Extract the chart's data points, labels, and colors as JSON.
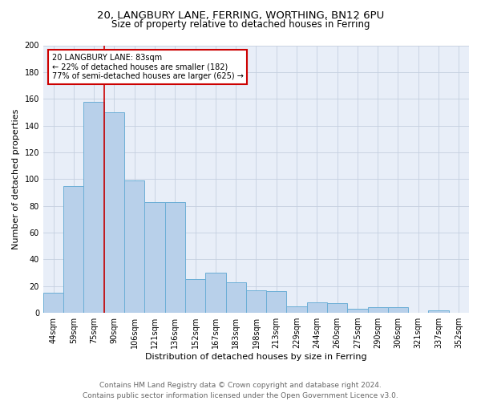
{
  "title1": "20, LANGBURY LANE, FERRING, WORTHING, BN12 6PU",
  "title2": "Size of property relative to detached houses in Ferring",
  "xlabel": "Distribution of detached houses by size in Ferring",
  "ylabel": "Number of detached properties",
  "categories": [
    "44sqm",
    "59sqm",
    "75sqm",
    "90sqm",
    "106sqm",
    "121sqm",
    "136sqm",
    "152sqm",
    "167sqm",
    "183sqm",
    "198sqm",
    "213sqm",
    "229sqm",
    "244sqm",
    "260sqm",
    "275sqm",
    "290sqm",
    "306sqm",
    "321sqm",
    "337sqm",
    "352sqm"
  ],
  "values": [
    15,
    95,
    158,
    150,
    99,
    83,
    83,
    25,
    30,
    23,
    17,
    16,
    5,
    8,
    7,
    3,
    4,
    4,
    0,
    2,
    0
  ],
  "bar_color": "#b8d0ea",
  "bar_edge_color": "#6baed6",
  "vline_color": "#cc0000",
  "annotation_text": "20 LANGBURY LANE: 83sqm\n← 22% of detached houses are smaller (182)\n77% of semi-detached houses are larger (625) →",
  "annotation_box_color": "#ffffff",
  "annotation_box_edge": "#cc0000",
  "ylim": [
    0,
    200
  ],
  "yticks": [
    0,
    20,
    40,
    60,
    80,
    100,
    120,
    140,
    160,
    180,
    200
  ],
  "bg_color": "#e8eef8",
  "footer": "Contains HM Land Registry data © Crown copyright and database right 2024.\nContains public sector information licensed under the Open Government Licence v3.0.",
  "title1_fontsize": 9.5,
  "title2_fontsize": 8.5,
  "xlabel_fontsize": 8,
  "ylabel_fontsize": 8,
  "tick_fontsize": 7,
  "footer_fontsize": 6.5,
  "annot_fontsize": 7
}
